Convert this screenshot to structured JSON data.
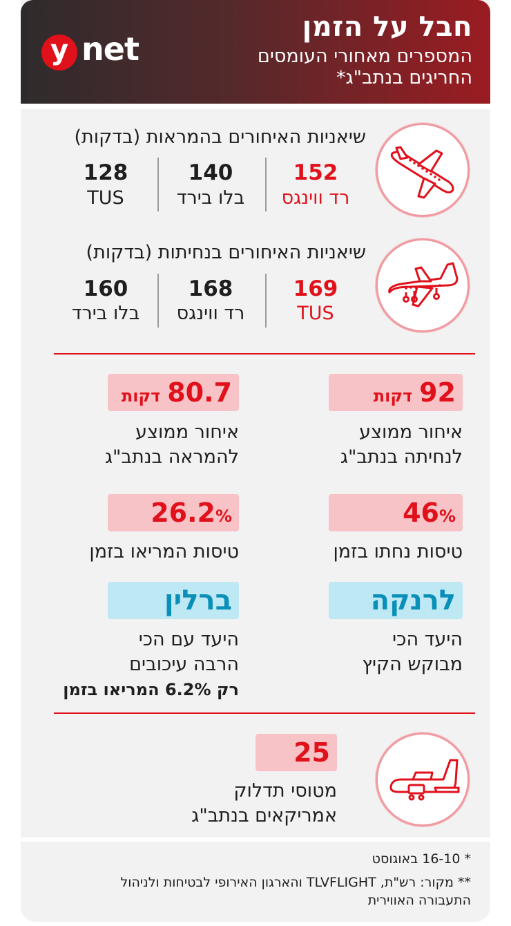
{
  "header": {
    "title": "חבל על הזמן",
    "subtitle_line1": "המספרים מאחורי העומסים",
    "subtitle_line2": "החריגים בנתב\"ג*",
    "logo_y": "y",
    "logo_net": "net"
  },
  "departures": {
    "title": "שיאניות האיחורים בהמראות (בדקות)",
    "items": [
      {
        "value": "152",
        "name": "רד ווינגס"
      },
      {
        "value": "140",
        "name": "בלו בירד"
      },
      {
        "value": "128",
        "name": "TUS"
      }
    ]
  },
  "arrivals": {
    "title": "שיאניות האיחורים בנחיתות (בדקות)",
    "items": [
      {
        "value": "169",
        "name": "TUS"
      },
      {
        "value": "168",
        "name": "רד ווינגס"
      },
      {
        "value": "160",
        "name": "בלו בירד"
      }
    ]
  },
  "stats": {
    "avg_landing_delay": {
      "value": "92",
      "unit": "דקות",
      "line1": "איחור ממוצע",
      "line2": "לנחיתה בנתב\"ג"
    },
    "avg_takeoff_delay": {
      "value": "80.7",
      "unit": "דקות",
      "line1": "איחור ממוצע",
      "line2": "להמראה בנתב\"ג"
    },
    "landed_on_time": {
      "value": "46",
      "pct": "%",
      "label": "טיסות נחתו בזמן"
    },
    "took_off_on_time": {
      "value": "26.2",
      "pct": "%",
      "label": "טיסות המריאו בזמן"
    },
    "most_requested": {
      "city": "לרנקה",
      "line1": "היעד הכי",
      "line2": "מבוקש הקיץ"
    },
    "most_delayed": {
      "city": "ברלין",
      "line1": "היעד עם הכי",
      "line2": "הרבה עיכובים",
      "line3": "רק 6.2% המריאו בזמן"
    },
    "tankers": {
      "value": "25",
      "line1": "מטוסי תדלוק",
      "line2": "אמריקאים בנתב\"ג"
    }
  },
  "footer": {
    "note1": "* 16-10 באוגוסט",
    "note2_line1": "** מקור: רש\"ת, TLVFLIGHT והארגון האירופי לבטיחות ולניהול",
    "note2_line2": "התעבורה האווירית"
  },
  "icons": {
    "departures_icon": "airplane-takeoff-icon",
    "arrivals_icon": "airplane-landing-icon",
    "tanker_icon": "cargo-plane-icon"
  },
  "colors": {
    "accent_red": "#e0111b",
    "accent_blue": "#0a8fb8",
    "pink_bg": "#f8c3c7",
    "blue_bg": "#bfe8f5"
  }
}
